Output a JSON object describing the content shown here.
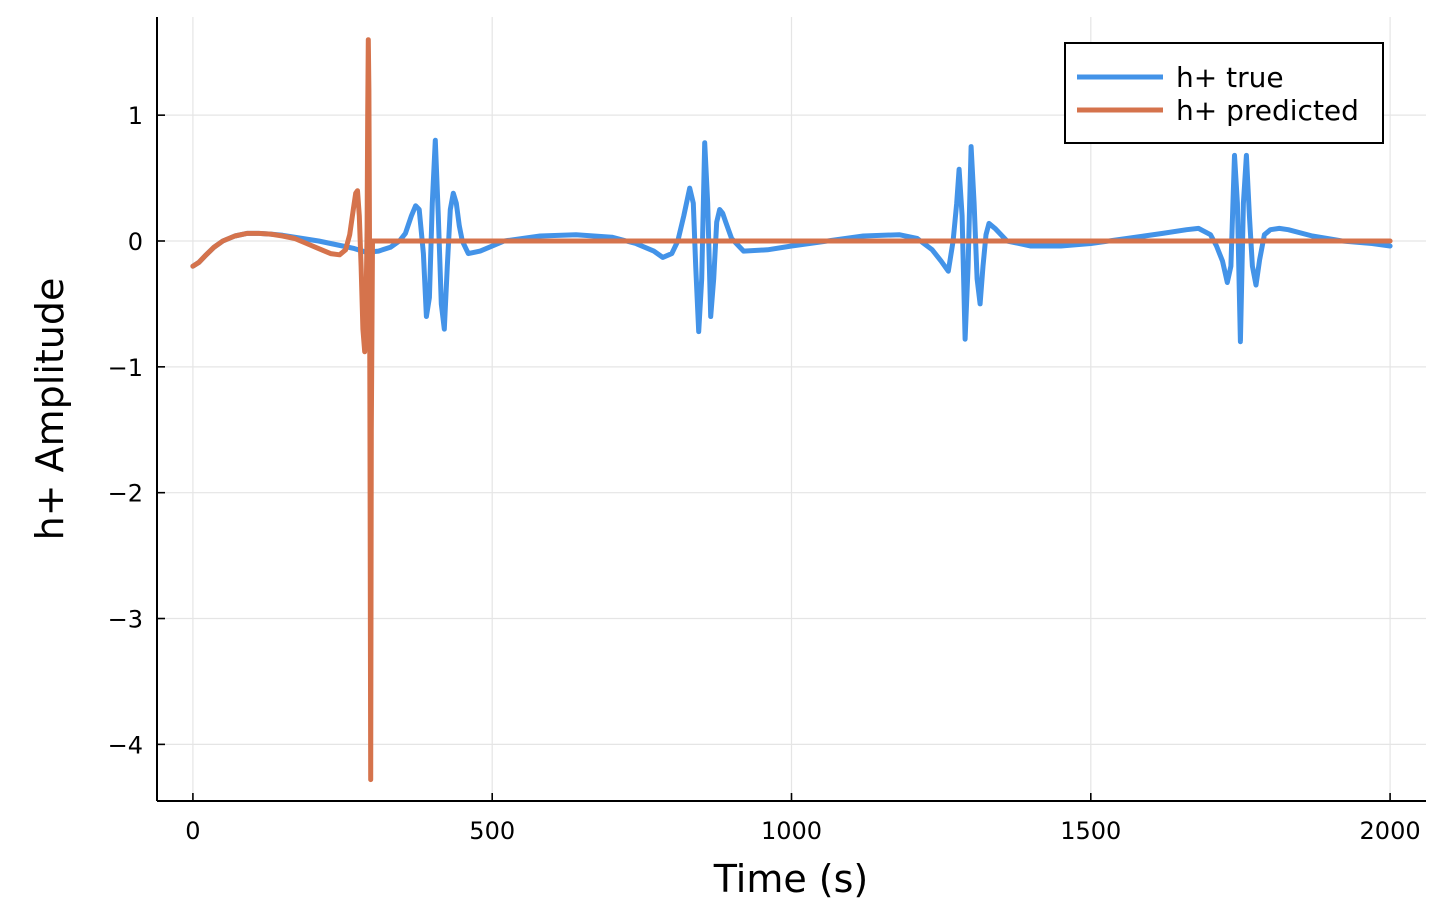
{
  "chart_data": {
    "type": "line",
    "title": "",
    "xlabel": "Time (s)",
    "ylabel": "h+ Amplitude",
    "xlim": [
      -60,
      2060
    ],
    "ylim": [
      -4.45,
      1.78
    ],
    "xticks": [
      0,
      500,
      1000,
      1500,
      2000
    ],
    "xtick_labels": [
      "0",
      "500",
      "1000",
      "1500",
      "2000"
    ],
    "yticks": [
      1,
      0,
      -1,
      -2,
      -3,
      -4
    ],
    "ytick_labels": [
      "1",
      "0",
      "−1",
      "−2",
      "−3",
      "−4"
    ],
    "grid": true,
    "legend_position": "top-right",
    "series": [
      {
        "name": "h+ true",
        "color": "#4393e8",
        "x": [
          0,
          10,
          20,
          35,
          50,
          70,
          90,
          110,
          130,
          150,
          170,
          190,
          210,
          230,
          250,
          270,
          290,
          310,
          330,
          345,
          355,
          365,
          372,
          378,
          385,
          390,
          395,
          400,
          405,
          410,
          415,
          420,
          425,
          430,
          435,
          440,
          445,
          450,
          460,
          480,
          520,
          580,
          640,
          700,
          740,
          770,
          785,
          800,
          810,
          820,
          830,
          836,
          840,
          845,
          850,
          855,
          860,
          865,
          870,
          875,
          880,
          885,
          890,
          900,
          920,
          960,
          1000,
          1060,
          1120,
          1180,
          1210,
          1235,
          1250,
          1262,
          1270,
          1276,
          1280,
          1285,
          1290,
          1295,
          1300,
          1305,
          1310,
          1315,
          1320,
          1325,
          1330,
          1340,
          1360,
          1400,
          1450,
          1500,
          1560,
          1620,
          1660,
          1680,
          1700,
          1710,
          1720,
          1728,
          1734,
          1740,
          1745,
          1750,
          1755,
          1760,
          1765,
          1770,
          1776,
          1782,
          1790,
          1800,
          1815,
          1830,
          1870,
          1920,
          1970,
          2000
        ],
        "values": [
          -0.2,
          -0.17,
          -0.12,
          -0.05,
          0,
          0.04,
          0.06,
          0.06,
          0.055,
          0.045,
          0.03,
          0.015,
          0,
          -0.02,
          -0.04,
          -0.06,
          -0.09,
          -0.08,
          -0.05,
          0,
          0.06,
          0.2,
          0.28,
          0.25,
          -0.1,
          -0.6,
          -0.45,
          0.3,
          0.8,
          0.2,
          -0.5,
          -0.7,
          -0.2,
          0.25,
          0.38,
          0.3,
          0.12,
          0,
          -0.1,
          -0.08,
          0,
          0.04,
          0.05,
          0.03,
          -0.02,
          -0.08,
          -0.13,
          -0.1,
          0,
          0.2,
          0.42,
          0.3,
          -0.2,
          -0.72,
          -0.3,
          0.78,
          0.3,
          -0.6,
          -0.3,
          0.15,
          0.25,
          0.22,
          0.15,
          0.02,
          -0.08,
          -0.07,
          -0.04,
          0,
          0.04,
          0.05,
          0.02,
          -0.07,
          -0.16,
          -0.24,
          0,
          0.3,
          0.57,
          0.2,
          -0.78,
          -0.2,
          0.75,
          0.3,
          -0.3,
          -0.5,
          -0.2,
          0.05,
          0.14,
          0.1,
          0,
          -0.04,
          -0.04,
          -0.02,
          0.02,
          0.06,
          0.09,
          0.1,
          0.05,
          -0.04,
          -0.16,
          -0.33,
          -0.2,
          0.68,
          0.3,
          -0.8,
          0.3,
          0.68,
          0.2,
          -0.2,
          -0.35,
          -0.15,
          0.05,
          0.09,
          0.1,
          0.09,
          0.04,
          0,
          -0.02,
          -0.04
        ]
      },
      {
        "name": "h+ predicted",
        "color": "#d5734c",
        "x": [
          0,
          10,
          20,
          35,
          50,
          70,
          90,
          110,
          130,
          150,
          170,
          190,
          210,
          230,
          245,
          255,
          262,
          268,
          272,
          275,
          278,
          281,
          284,
          287,
          289,
          291,
          292,
          293,
          294,
          295,
          296,
          297,
          298,
          300,
          302,
          304,
          310,
          350,
          500,
          1000,
          1500,
          2000
        ],
        "values": [
          -0.2,
          -0.17,
          -0.12,
          -0.05,
          0,
          0.04,
          0.06,
          0.06,
          0.055,
          0.04,
          0.02,
          -0.02,
          -0.06,
          -0.1,
          -0.11,
          -0.07,
          0.05,
          0.25,
          0.38,
          0.4,
          0.2,
          -0.2,
          -0.7,
          -0.88,
          -0.6,
          0.1,
          1.0,
          1.6,
          1.2,
          0,
          -2.0,
          -4.28,
          -1.5,
          0,
          0,
          0,
          0,
          0,
          0,
          0,
          0,
          0
        ]
      }
    ]
  }
}
